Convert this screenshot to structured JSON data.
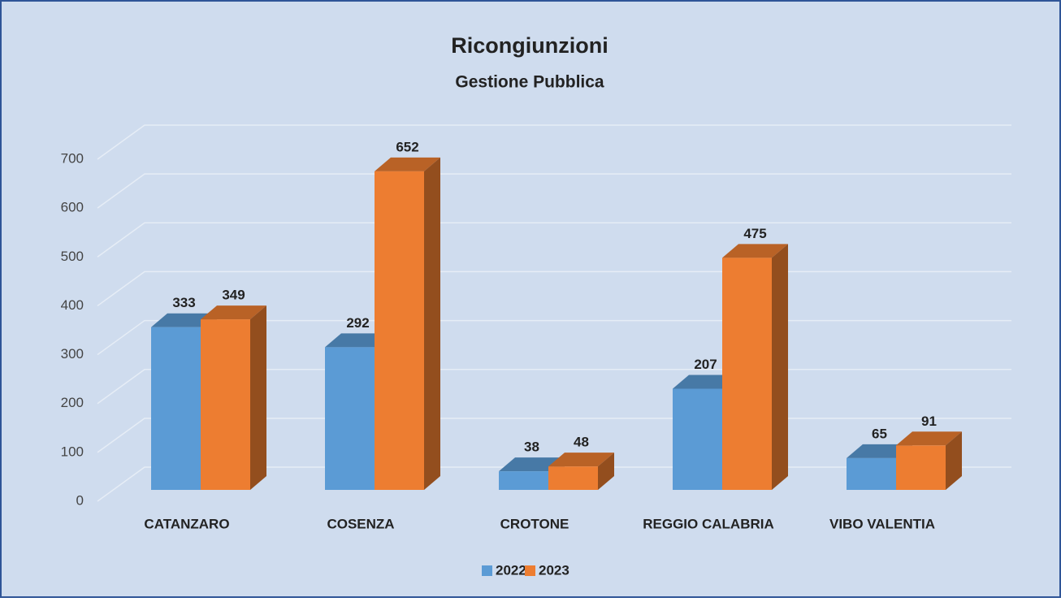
{
  "chart_data": {
    "type": "bar3d",
    "title": "Ricongiunzioni",
    "subtitle": "Gestione Pubblica",
    "categories": [
      "CATANZARO",
      "COSENZA",
      "CROTONE",
      "REGGIO CALABRIA",
      "VIBO VALENTIA"
    ],
    "series": [
      {
        "name": "2022",
        "color": "#5b9bd5",
        "values": [
          333,
          292,
          38,
          207,
          65
        ]
      },
      {
        "name": "2023",
        "color": "#ed7d31",
        "values": [
          349,
          652,
          48,
          475,
          91
        ]
      }
    ],
    "ylim": [
      0,
      700
    ],
    "yticks": [
      0,
      100,
      200,
      300,
      400,
      500,
      600,
      700
    ],
    "grid": true,
    "legend": "bottom"
  }
}
